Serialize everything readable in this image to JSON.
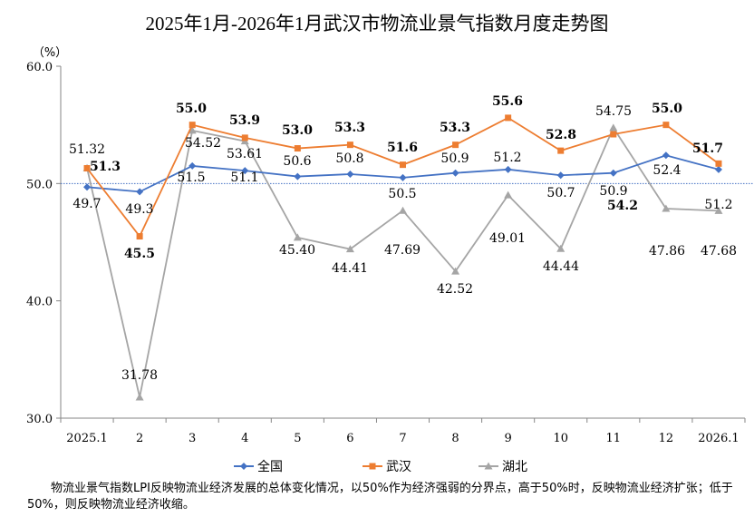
{
  "chart_data": {
    "type": "line",
    "title": "2025年1月-2026年1月武汉市物流业景气指数月度走势图",
    "ylabel": "（%）",
    "xlabel": "",
    "categories": [
      "2025.1",
      "2",
      "3",
      "4",
      "5",
      "6",
      "7",
      "8",
      "9",
      "10",
      "11",
      "12",
      "2026.1"
    ],
    "ylim": [
      30,
      60
    ],
    "yticks": [
      "30.0",
      "40.0",
      "50.0",
      "60.0"
    ],
    "reference_line": 50,
    "grid": false,
    "legend_position": "bottom",
    "series": [
      {
        "name": "全国",
        "color": "#4472C4",
        "marker": "diamond",
        "values": [
          49.7,
          49.3,
          51.5,
          51.1,
          50.6,
          50.8,
          50.5,
          50.9,
          51.2,
          50.7,
          50.9,
          52.4,
          51.2
        ],
        "labels": [
          "49.7",
          "49.3",
          "51.5",
          "51.1",
          "50.6",
          "50.8",
          "50.5",
          "50.9",
          "51.2",
          "50.7",
          "50.9",
          "52.4",
          "51.2"
        ]
      },
      {
        "name": "武汉",
        "color": "#ED7D31",
        "marker": "square",
        "values": [
          51.3,
          45.5,
          55.0,
          53.9,
          53.0,
          53.3,
          51.6,
          53.3,
          55.6,
          52.8,
          54.2,
          55.0,
          51.7
        ],
        "labels": [
          "51.3",
          "45.5",
          "55.0",
          "53.9",
          "53.0",
          "53.3",
          "51.6",
          "53.3",
          "55.6",
          "52.8",
          "54.2",
          "55.0",
          "51.7"
        ]
      },
      {
        "name": "湖北",
        "color": "#A5A5A5",
        "marker": "triangle",
        "values": [
          51.32,
          31.78,
          54.52,
          53.61,
          45.4,
          44.41,
          47.69,
          42.52,
          49.01,
          44.44,
          54.75,
          47.86,
          47.68
        ],
        "labels": [
          "51.32",
          "31.78",
          "54.52",
          "53.61",
          "45.40",
          "44.41",
          "47.69",
          "42.52",
          "49.01",
          "44.44",
          "54.75",
          "47.86",
          "47.68"
        ]
      }
    ]
  },
  "note": "物流业景气指数LPI反映物流业经济发展的总体变化情况，以50%作为经济强弱的分界点，高于50%时，反映物流业经济扩张；低于50%，则反映物流业经济收缩。"
}
